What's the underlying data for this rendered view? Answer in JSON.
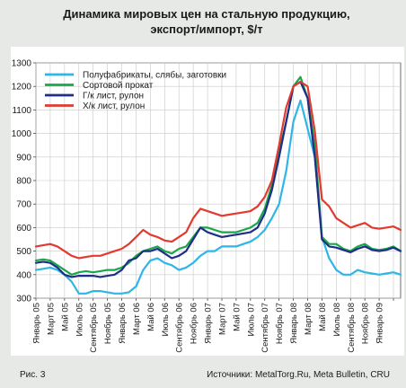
{
  "header": {
    "title_line1": "Динамика мировых цен на стальную продукцию,",
    "title_line2": "экспорт/импорт, $/т"
  },
  "footer": {
    "figure_label": "Рис. 3",
    "source": "Источники: MetalTorg.Ru, Meta Bulletin, CRU"
  },
  "chart_data": {
    "type": "line",
    "title": "Динамика мировых цен на стальную продукцию, экспорт/импорт, $/т",
    "ylim": [
      300,
      1300
    ],
    "yticks": [
      300,
      400,
      500,
      600,
      700,
      800,
      900,
      1000,
      1100,
      1200,
      1300
    ],
    "grid": true,
    "legend_position": "top-left",
    "x_labels": [
      "Январь 05",
      "Март 05",
      "Май 05",
      "Июль 05",
      "Сентябрь 05",
      "Ноябрь 05",
      "Январь 06",
      "Март 06",
      "Май 06",
      "Июль 06",
      "Сентябрь 06",
      "Ноябрь 06",
      "Январь 07",
      "Март 07",
      "Май 07",
      "Июль 07",
      "Сентябрь 07",
      "Ноябрь 07",
      "Январь 08",
      "Март 08",
      "Май 08",
      "Июль 08",
      "Сентябрь 08",
      "Ноябрь 08",
      "Январь 09",
      "Март 09",
      "Май 09",
      "Июль 09",
      "Сентябрь 09",
      "Ноябрь 09",
      "Январь 09"
    ],
    "tick_positions": [
      0,
      2,
      4,
      6,
      8,
      10,
      12,
      14,
      16,
      18,
      20,
      22,
      24,
      26,
      28,
      30,
      32,
      34,
      36,
      38,
      40,
      42,
      44,
      46,
      48,
      50,
      52,
      54,
      56,
      58,
      60
    ],
    "visible_x_labels": [
      "Январь 05",
      "Март 05",
      "Май 05",
      "Июль 05",
      "Сентябрь 05",
      "Ноябрь 05",
      "Январь 06",
      "Март 06",
      "Май 06",
      "Июль 06",
      "Сентябрь 06",
      "Ноябрь 06",
      "Январь 07",
      "Март 07",
      "Май 07",
      "Июль 07",
      "Сентябрь 07",
      "Ноябрь 07",
      "Январь 08",
      "Март 08",
      "Май 08",
      "Июль 08",
      "Сентябрь 08",
      "Ноябрь 08",
      "Январь 09"
    ],
    "x_range": [
      0,
      51
    ],
    "x_step_months": 1,
    "series": [
      {
        "name": "Полуфабрикаты, слябы, заготовки",
        "color": "#2eb6e8",
        "values": [
          420,
          425,
          430,
          420,
          400,
          370,
          320,
          320,
          330,
          330,
          325,
          320,
          320,
          325,
          350,
          420,
          460,
          470,
          450,
          440,
          420,
          430,
          450,
          480,
          500,
          500,
          520,
          520,
          520,
          530,
          540,
          560,
          590,
          640,
          700,
          840,
          1050,
          1140,
          1020,
          900,
          560,
          470,
          420,
          400,
          400,
          420,
          410,
          405,
          400,
          405,
          410,
          400
        ]
      },
      {
        "name": "Сортовой прокат",
        "color": "#1aa64a",
        "values": [
          460,
          465,
          460,
          440,
          420,
          400,
          410,
          415,
          410,
          415,
          420,
          420,
          430,
          450,
          480,
          500,
          510,
          520,
          500,
          490,
          510,
          520,
          560,
          600,
          600,
          590,
          580,
          580,
          580,
          590,
          600,
          620,
          680,
          780,
          920,
          1050,
          1200,
          1240,
          1150,
          950,
          560,
          530,
          530,
          510,
          500,
          520,
          530,
          510,
          505,
          510,
          520,
          500
        ]
      },
      {
        "name": "Г/к лист, рулон",
        "color": "#1f2e86",
        "values": [
          450,
          455,
          450,
          430,
          400,
          390,
          395,
          395,
          395,
          390,
          395,
          400,
          420,
          460,
          470,
          500,
          500,
          510,
          490,
          470,
          480,
          500,
          550,
          600,
          580,
          570,
          560,
          565,
          570,
          575,
          580,
          600,
          660,
          760,
          900,
          1050,
          1200,
          1220,
          1150,
          900,
          550,
          520,
          515,
          505,
          495,
          510,
          520,
          505,
          500,
          505,
          515,
          500
        ]
      },
      {
        "name": "Х/к лист, рулон",
        "color": "#e23a2e",
        "values": [
          520,
          525,
          530,
          520,
          500,
          480,
          470,
          475,
          480,
          480,
          490,
          500,
          510,
          530,
          560,
          590,
          570,
          560,
          545,
          540,
          560,
          580,
          640,
          680,
          670,
          660,
          650,
          655,
          660,
          665,
          670,
          690,
          730,
          800,
          950,
          1110,
          1200,
          1220,
          1200,
          1010,
          720,
          690,
          640,
          620,
          600,
          610,
          620,
          600,
          595,
          600,
          605,
          590
        ]
      }
    ]
  }
}
